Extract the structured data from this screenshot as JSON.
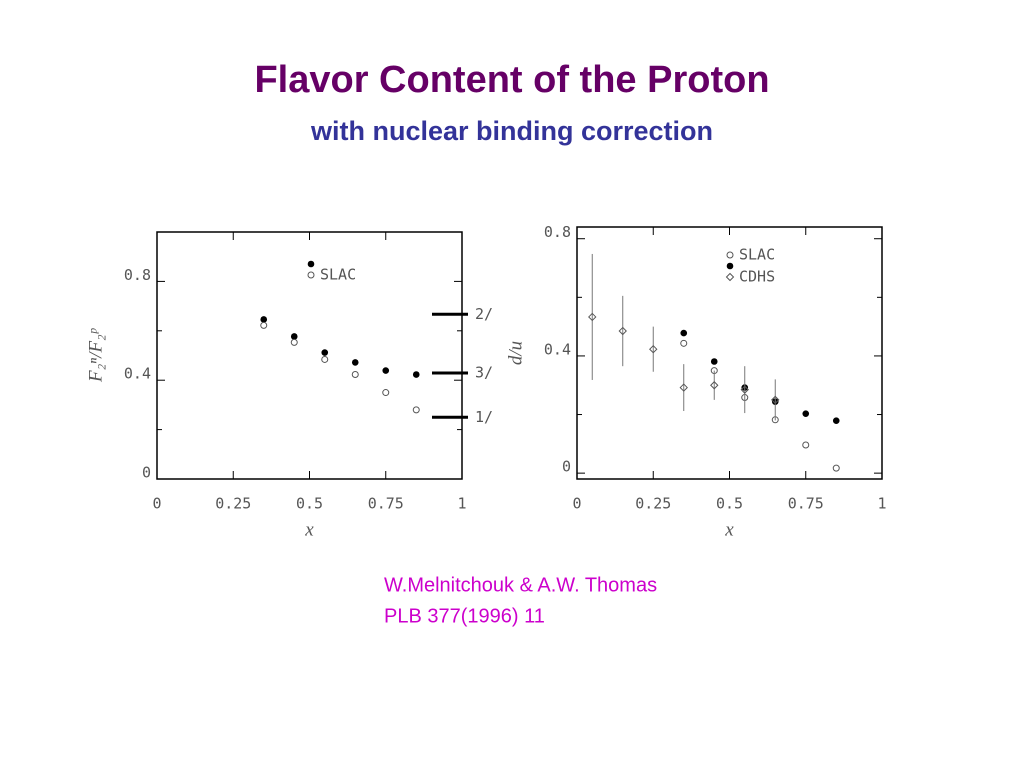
{
  "header": {
    "title": "Flavor Content of the Proton",
    "subtitle": "with nuclear binding correction"
  },
  "chart_data": [
    {
      "type": "scatter",
      "x_label": "x",
      "y_label": "F₂ⁿ/F₂ᵖ",
      "xlim": [
        0,
        1
      ],
      "ylim": [
        0,
        1
      ],
      "xticks": [
        0,
        0.25,
        0.5,
        0.75,
        1
      ],
      "yticks": [
        0,
        0.4,
        0.8
      ],
      "yminor": [
        0.2,
        0.6
      ],
      "series": [
        {
          "marker": "filled-circle",
          "color": "#000000",
          "x": [
            0.35,
            0.45,
            0.55,
            0.65,
            0.75,
            0.85
          ],
          "values": [
            0.646,
            0.577,
            0.512,
            0.472,
            0.439,
            0.423
          ]
        },
        {
          "name": "SLAC",
          "marker": "open-circle",
          "color": "#555555",
          "x": [
            0.35,
            0.45,
            0.55,
            0.65,
            0.75,
            0.85
          ],
          "values": [
            0.622,
            0.553,
            0.484,
            0.423,
            0.35,
            0.28
          ]
        }
      ],
      "reference_lines": [
        {
          "value": 0.667,
          "label": "2/"
        },
        {
          "value": 0.429,
          "label": "3/"
        },
        {
          "value": 0.25,
          "label": "1/"
        }
      ]
    },
    {
      "type": "scatter",
      "x_label": "x",
      "y_label": "d/u",
      "xlim": [
        0,
        1
      ],
      "ylim": [
        -0.02,
        0.84
      ],
      "xticks": [
        0,
        0.25,
        0.5,
        0.75,
        1
      ],
      "yticks": [
        0,
        0.4,
        0.8
      ],
      "yminor": [
        0.2,
        0.6
      ],
      "series": [
        {
          "name": "SLAC",
          "marker": "open-circle",
          "color": "#555555",
          "x": [
            0.35,
            0.45,
            0.55,
            0.65,
            0.75,
            0.85
          ],
          "values": [
            0.443,
            0.35,
            0.258,
            0.182,
            0.096,
            0.017
          ]
        },
        {
          "marker": "filled-circle",
          "color": "#000000",
          "x": [
            0.35,
            0.45,
            0.55,
            0.65,
            0.75,
            0.85
          ],
          "values": [
            0.478,
            0.381,
            0.292,
            0.244,
            0.203,
            0.179
          ]
        },
        {
          "name": "CDHS",
          "marker": "diamond",
          "color": "#555555",
          "x": [
            0.05,
            0.15,
            0.25,
            0.35,
            0.45,
            0.55,
            0.65
          ],
          "values": [
            0.533,
            0.485,
            0.423,
            0.292,
            0.3,
            0.285,
            0.25
          ],
          "errors": [
            0.215,
            0.12,
            0.077,
            0.08,
            0.05,
            0.08,
            0.07
          ]
        }
      ]
    }
  ],
  "citation": {
    "lines": [
      "W.Melnitchouk & A.W. Thomas",
      "PLB 377(1996) 11"
    ]
  }
}
